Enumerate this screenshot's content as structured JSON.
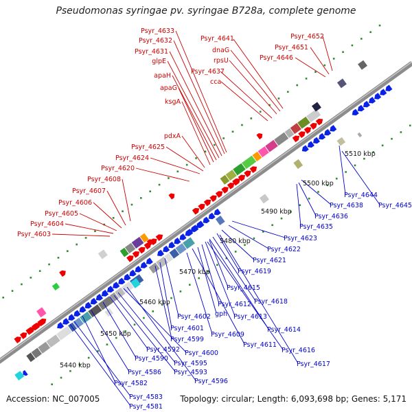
{
  "title": "Pseudomonas syringae pv. syringae B728a, complete genome",
  "accession": "Accession: NC_007005",
  "summary": "Topology: circular; Length: 6,093,698 bp; Genes: 5,171",
  "colors": {
    "forward_label": "#cc0000",
    "reverse_label": "#0000cc",
    "backbone": "#8c8c8c",
    "tick_dots": "#2e8b2e"
  },
  "scale_labels": [
    "5440 kbp",
    "5450 kbp",
    "5460 kbp",
    "5470 kbp",
    "5480 kbp",
    "5490 kbp",
    "5500 kbp",
    "5510 kbp"
  ],
  "forward_labels": [
    "Psyr_4633",
    "Psyr_4632",
    "Psyr_4631",
    "glpE",
    "apaH",
    "apaG",
    "ksgA",
    "pdxA",
    "Psyr_4625",
    "Psyr_4624",
    "Psyr_4620",
    "Psyr_4608",
    "Psyr_4607",
    "Psyr_4606",
    "Psyr_4605",
    "Psyr_4604",
    "Psyr_4603",
    "Psyr_4641",
    "dnaG",
    "rpsU",
    "Psyr_4637",
    "cca",
    "Psyr_4652",
    "Psyr_4651",
    "Psyr_4646"
  ],
  "reverse_labels": [
    "Psyr_4644",
    "Psyr_4638",
    "Psyr_4645",
    "Psyr_4636",
    "Psyr_4635",
    "Psyr_4623",
    "Psyr_4622",
    "Psyr_4621",
    "Psyr_4619",
    "Psyr_4615",
    "Psyr_4618",
    "Psyr_4612",
    "gph",
    "Psyr_4613",
    "Psyr_4614",
    "Psyr_4602",
    "Psyr_4601",
    "Psyr_4599",
    "Psyr_4609",
    "Psyr_4611",
    "Psyr_4616",
    "Psyr_4600",
    "Psyr_4592",
    "Psyr_4590",
    "Psyr_4595",
    "Psyr_4593",
    "Psyr_4617",
    "Psyr_4586",
    "Psyr_4596",
    "Psyr_4582",
    "Psyr_4583",
    "Psyr_4581"
  ]
}
